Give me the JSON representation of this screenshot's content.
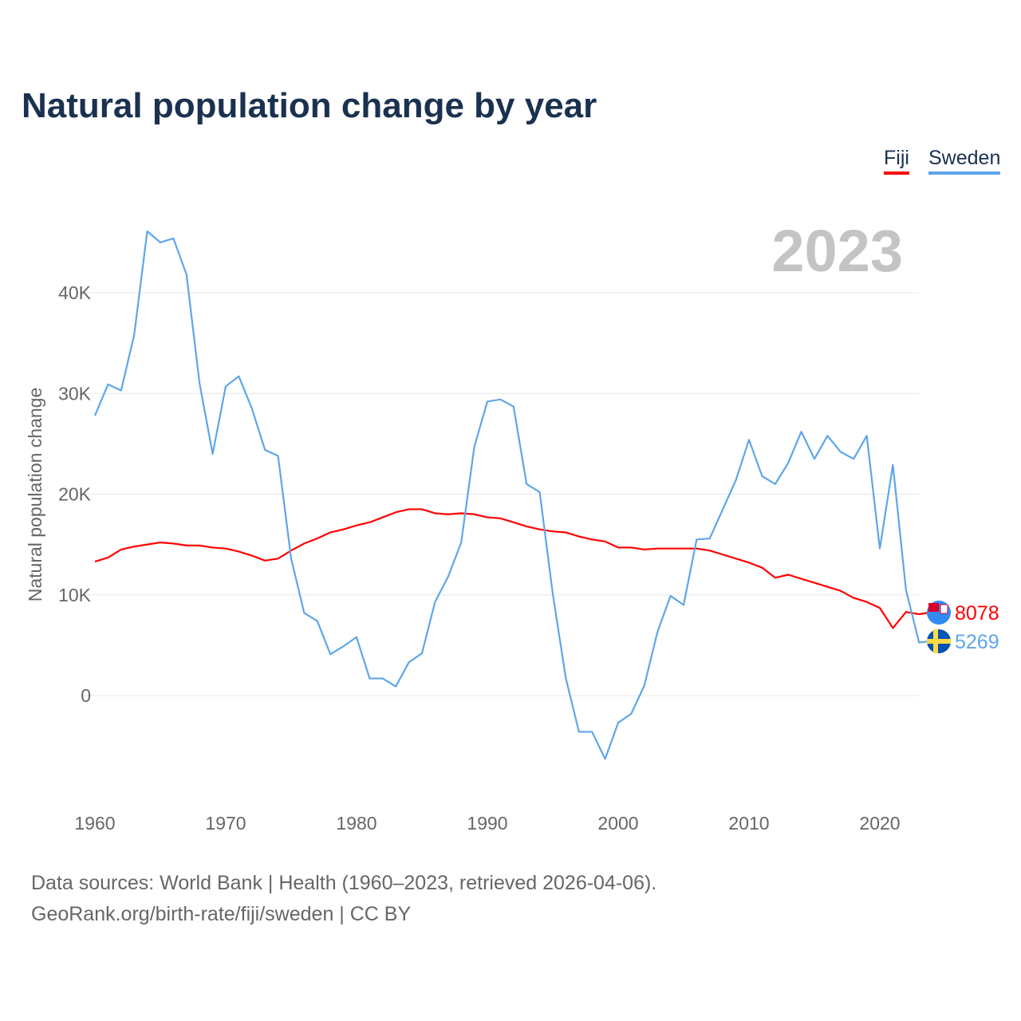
{
  "chart_data": {
    "type": "line",
    "title": "Natural population change by year",
    "ylabel": "Natural population change",
    "xlabel": "",
    "year_label": "2023",
    "xlim": [
      1960,
      2023
    ],
    "ylim": [
      -10000,
      47000
    ],
    "yticks": [
      0,
      10000,
      20000,
      30000,
      40000
    ],
    "ytick_labels": [
      "0",
      "10K",
      "20K",
      "30K",
      "40K"
    ],
    "xticks": [
      1960,
      1970,
      1980,
      1990,
      2000,
      2010,
      2020
    ],
    "xtick_labels": [
      "1960",
      "1970",
      "1980",
      "1990",
      "2000",
      "2010",
      "2020"
    ],
    "legend": "top-right",
    "x": [
      1960,
      1961,
      1962,
      1963,
      1964,
      1965,
      1966,
      1967,
      1968,
      1969,
      1970,
      1971,
      1972,
      1973,
      1974,
      1975,
      1976,
      1977,
      1978,
      1979,
      1980,
      1981,
      1982,
      1983,
      1984,
      1985,
      1986,
      1987,
      1988,
      1989,
      1990,
      1991,
      1992,
      1993,
      1994,
      1995,
      1996,
      1997,
      1998,
      1999,
      2000,
      2001,
      2002,
      2003,
      2004,
      2005,
      2006,
      2007,
      2008,
      2009,
      2010,
      2011,
      2012,
      2013,
      2014,
      2015,
      2016,
      2017,
      2018,
      2019,
      2020,
      2021,
      2022,
      2023
    ],
    "series": [
      {
        "name": "Fiji",
        "color": "#ff0000",
        "end_label": "8078",
        "values": [
          13300,
          13700,
          14500,
          14800,
          15000,
          15200,
          15100,
          14900,
          14900,
          14700,
          14600,
          14300,
          13900,
          13400,
          13600,
          14400,
          15100,
          15600,
          16200,
          16500,
          16900,
          17200,
          17700,
          18200,
          18500,
          18500,
          18100,
          18000,
          18100,
          18000,
          17700,
          17600,
          17200,
          16800,
          16500,
          16300,
          16200,
          15800,
          15500,
          15300,
          14700,
          14700,
          14500,
          14600,
          14600,
          14600,
          14600,
          14400,
          14000,
          13600,
          13200,
          12700,
          11700,
          12000,
          11600,
          11200,
          10800,
          10400,
          9700,
          9300,
          8700,
          6700,
          8300,
          8078
        ]
      },
      {
        "name": "Sweden",
        "color": "#5ea6ea",
        "end_label": "5269",
        "values": [
          27800,
          30900,
          30300,
          35800,
          46100,
          45000,
          45400,
          41800,
          31000,
          24000,
          30700,
          31700,
          28500,
          24400,
          23800,
          13600,
          8200,
          7400,
          4100,
          4900,
          5800,
          1700,
          1700,
          900,
          3300,
          4200,
          9300,
          11800,
          15200,
          24700,
          29200,
          29400,
          28700,
          21000,
          20200,
          10100,
          1700,
          -3600,
          -3600,
          -6300,
          -2700,
          -1800,
          1000,
          6300,
          9900,
          9000,
          15500,
          15600,
          18500,
          21400,
          25400,
          21800,
          21000,
          23100,
          26200,
          23500,
          25800,
          24200,
          23500,
          25800,
          14600,
          22900,
          10500,
          5269
        ]
      }
    ]
  },
  "source": {
    "line1": "Data sources: World Bank | Health (1960–2023, retrieved 2026-04-06).",
    "line2": "GeoRank.org/birth-rate/fiji/sweden | CC BY"
  }
}
